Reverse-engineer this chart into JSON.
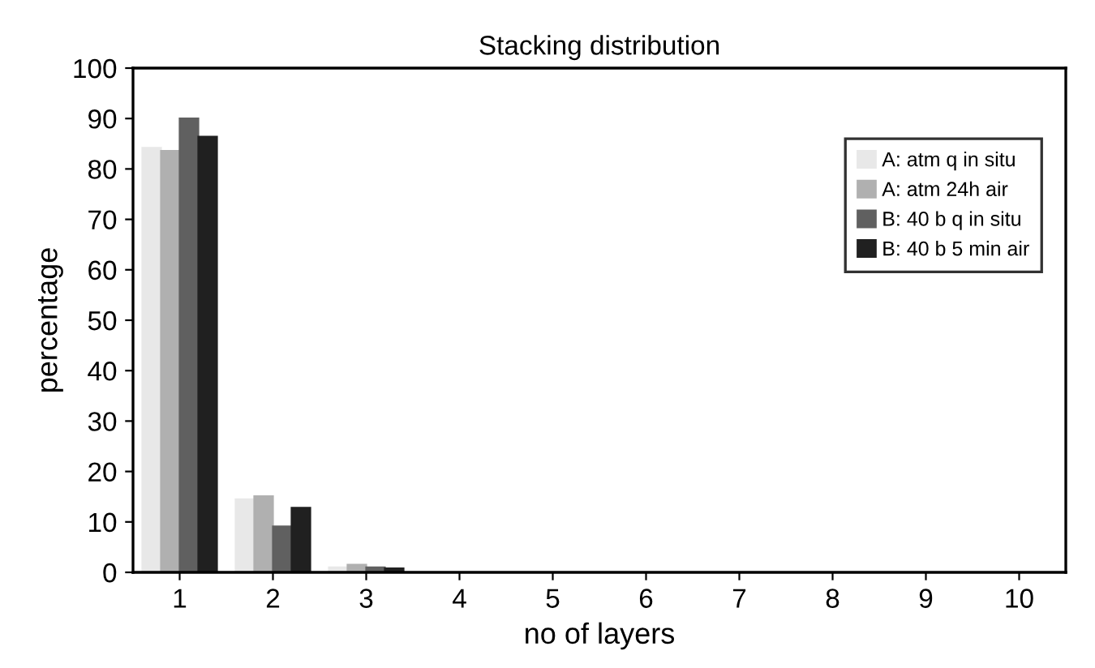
{
  "chart_data": {
    "type": "bar",
    "title": "Stacking distribution",
    "xlabel": "no of layers",
    "ylabel": "percentage",
    "categories": [
      "1",
      "2",
      "3",
      "4",
      "5",
      "6",
      "7",
      "8",
      "9",
      "10"
    ],
    "series": [
      {
        "name": "A: atm q in situ",
        "color": "#e8e8e8",
        "values": [
          84.2,
          14.5,
          1.0,
          0,
          0,
          0,
          0,
          0,
          0,
          0
        ]
      },
      {
        "name": "A: atm 24h air",
        "color": "#b0b0b0",
        "values": [
          83.6,
          15.1,
          1.5,
          0,
          0,
          0,
          0,
          0,
          0,
          0
        ]
      },
      {
        "name": "B: 40 b q in situ",
        "color": "#606060",
        "values": [
          90.0,
          9.1,
          1.0,
          0,
          0,
          0,
          0,
          0,
          0,
          0
        ]
      },
      {
        "name": "B: 40 b 5 min air",
        "color": "#202020",
        "values": [
          86.4,
          12.8,
          0.8,
          0,
          0,
          0,
          0,
          0,
          0,
          0
        ]
      }
    ],
    "ylim": [
      0,
      100
    ],
    "yticks": [
      0,
      10,
      20,
      30,
      40,
      50,
      60,
      70,
      80,
      90,
      100
    ],
    "grid": false,
    "legend": "top right"
  }
}
